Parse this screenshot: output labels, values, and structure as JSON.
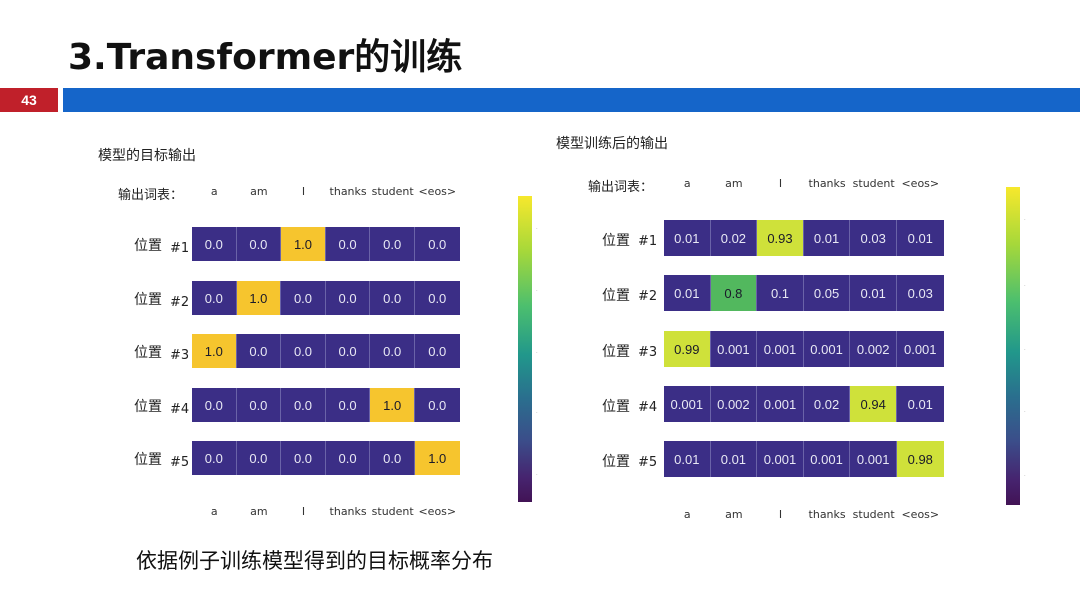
{
  "title": "3.Transformer的训练",
  "page_number": "43",
  "colors": {
    "accent_red": "#c0202a",
    "accent_blue": "#1565c9"
  },
  "left_panel": {
    "title": "模型的目标输出",
    "vocab_label": "输出词表：",
    "columns": [
      "a",
      "am",
      "I",
      "thanks",
      "student",
      "<eos>"
    ],
    "rows": [
      {
        "label": "位置",
        "index": "#1",
        "values": [
          "0.0",
          "0.0",
          "1.0",
          "0.0",
          "0.0",
          "0.0"
        ]
      },
      {
        "label": "位置",
        "index": "#2",
        "values": [
          "0.0",
          "1.0",
          "0.0",
          "0.0",
          "0.0",
          "0.0"
        ]
      },
      {
        "label": "位置",
        "index": "#3",
        "values": [
          "1.0",
          "0.0",
          "0.0",
          "0.0",
          "0.0",
          "0.0"
        ]
      },
      {
        "label": "位置",
        "index": "#4",
        "values": [
          "0.0",
          "0.0",
          "0.0",
          "0.0",
          "1.0",
          "0.0"
        ]
      },
      {
        "label": "位置",
        "index": "#5",
        "values": [
          "0.0",
          "0.0",
          "0.0",
          "0.0",
          "0.0",
          "1.0"
        ]
      }
    ]
  },
  "right_panel": {
    "title": "模型训练后的输出",
    "vocab_label": "输出词表：",
    "columns": [
      "a",
      "am",
      "I",
      "thanks",
      "student",
      "<eos>"
    ],
    "rows": [
      {
        "label": "位置",
        "index": "#1",
        "values": [
          "0.01",
          "0.02",
          "0.93",
          "0.01",
          "0.03",
          "0.01"
        ]
      },
      {
        "label": "位置",
        "index": "#2",
        "values": [
          "0.01",
          "0.8",
          "0.1",
          "0.05",
          "0.01",
          "0.03"
        ]
      },
      {
        "label": "位置",
        "index": "#3",
        "values": [
          "0.99",
          "0.001",
          "0.001",
          "0.001",
          "0.002",
          "0.001"
        ]
      },
      {
        "label": "位置",
        "index": "#4",
        "values": [
          "0.001",
          "0.002",
          "0.001",
          "0.02",
          "0.94",
          "0.01"
        ]
      },
      {
        "label": "位置",
        "index": "#5",
        "values": [
          "0.01",
          "0.01",
          "0.001",
          "0.001",
          "0.001",
          "0.98"
        ]
      }
    ]
  },
  "caption": "依据例子训练模型得到的目标概率分布"
}
